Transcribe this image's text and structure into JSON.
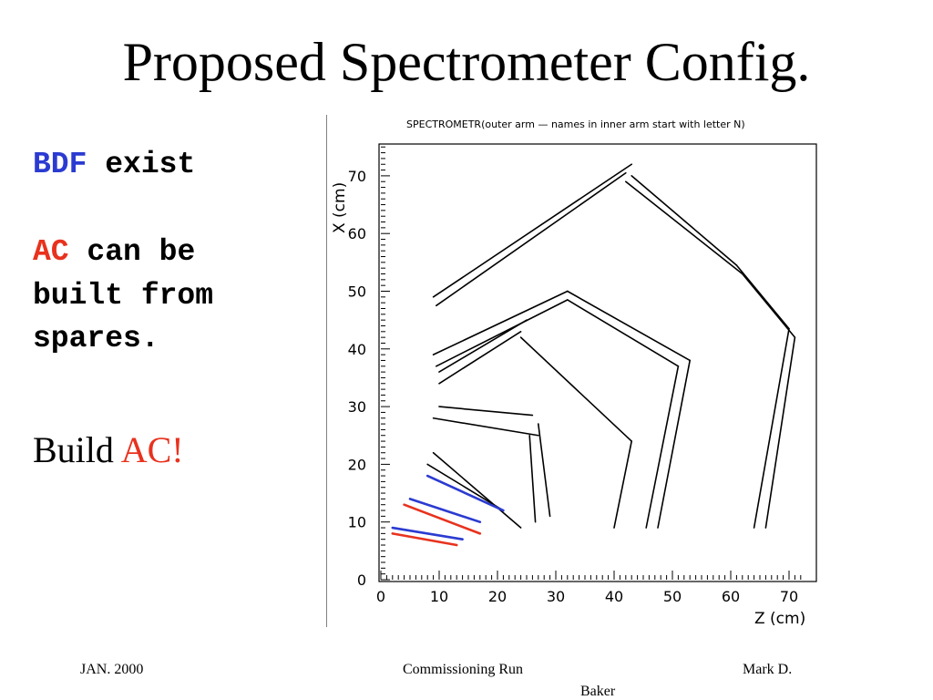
{
  "title": "Proposed Spectrometer Config.",
  "left": {
    "bdf": "BDF",
    "exist": "exist",
    "ac": "AC",
    "can_be": "can be",
    "built_from": "built from",
    "spares": "spares.",
    "build": "Build",
    "build_ac": "AC!"
  },
  "figure": {
    "title": "SPECTROMETR(outer arm — names in inner arm start with letter N)",
    "xlabel": "Z (cm)",
    "ylabel": "X (cm)",
    "xticks": [
      "0",
      "10",
      "20",
      "30",
      "40",
      "50",
      "60",
      "70"
    ],
    "yticks": [
      "0",
      "10",
      "20",
      "30",
      "40",
      "50",
      "60",
      "70"
    ],
    "colors": {
      "ac_red": "#e8321e",
      "bdf_blue": "#2b3bd1",
      "detector": "#000000"
    }
  },
  "chart_data": {
    "type": "scatter",
    "title": "SPECTROMETR(outer arm — names in inner arm start with letter N)",
    "xlabel": "Z (cm)",
    "ylabel": "X (cm)",
    "xlim": [
      0,
      72
    ],
    "ylim": [
      0,
      75
    ],
    "grid": false,
    "series": [
      {
        "kind": "detector",
        "segments": [
          [
            9,
            49,
            43,
            72
          ],
          [
            9.5,
            47.5,
            42,
            70.5
          ],
          [
            42,
            69,
            62,
            53
          ],
          [
            43,
            70,
            61,
            54.5
          ],
          [
            62,
            53,
            71,
            42
          ],
          [
            61,
            54.5,
            70,
            43.5
          ],
          [
            71,
            42,
            66,
            9
          ],
          [
            70,
            43.5,
            64,
            9
          ],
          [
            9,
            39,
            32,
            50
          ],
          [
            9.5,
            37,
            32,
            48.5
          ],
          [
            32,
            50,
            53,
            38
          ],
          [
            32,
            48.5,
            51,
            37
          ],
          [
            53,
            38,
            47.5,
            9
          ],
          [
            51,
            37,
            45.5,
            9
          ],
          [
            10,
            36,
            25,
            45
          ],
          [
            10,
            34,
            24,
            43
          ],
          [
            24,
            42,
            43,
            24
          ],
          [
            43,
            24,
            40,
            9
          ],
          [
            10,
            30,
            26,
            28.5
          ],
          [
            9,
            28,
            27,
            25
          ],
          [
            27,
            27,
            29,
            11
          ],
          [
            25.5,
            25,
            26.5,
            10
          ],
          [
            9,
            22,
            24,
            9
          ],
          [
            8,
            20,
            21,
            12
          ]
        ]
      },
      {
        "kind": "AC",
        "segments": [
          [
            2,
            8,
            13,
            6
          ],
          [
            4,
            13,
            17,
            8
          ]
        ]
      },
      {
        "kind": "BDF",
        "segments": [
          [
            2,
            9,
            14,
            7
          ],
          [
            5,
            14,
            17,
            10
          ],
          [
            8,
            18,
            21,
            12
          ]
        ]
      }
    ]
  },
  "footer": {
    "left": "JAN. 2000",
    "center": "Commissioning Run",
    "right": "Mark D.",
    "right2": "Baker"
  }
}
